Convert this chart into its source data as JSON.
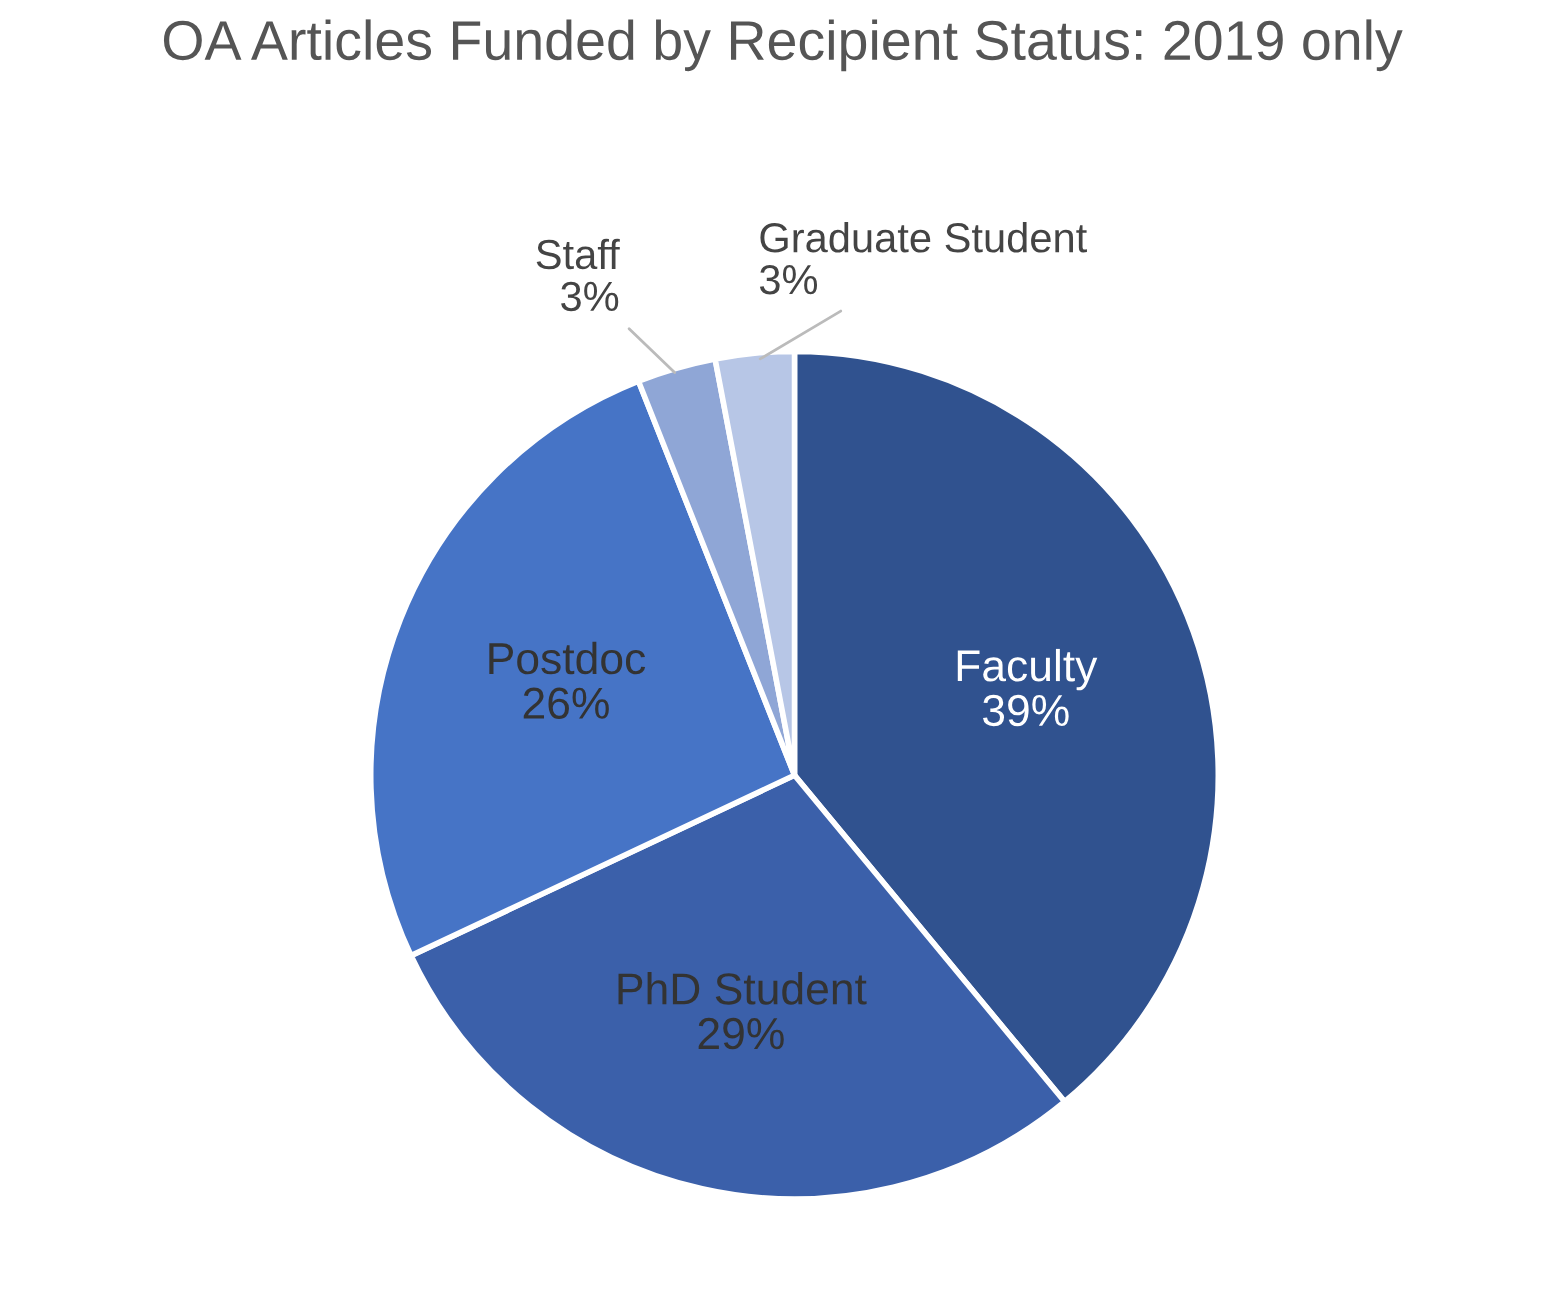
{
  "chart_data": {
    "type": "pie",
    "title": "OA Articles Funded by Recipient Status: 2019 only",
    "categories": [
      "Faculty",
      "PhD Student",
      "Postdoc",
      "Staff",
      "Graduate Student"
    ],
    "values": [
      39,
      29,
      26,
      3,
      3
    ],
    "colors": [
      "#30528f",
      "#3b60aa",
      "#4674c6",
      "#8fa6d6",
      "#b7c6e6"
    ],
    "value_labels": [
      "39%",
      "29%",
      "26%",
      "3%",
      "3%"
    ],
    "legend": false
  }
}
